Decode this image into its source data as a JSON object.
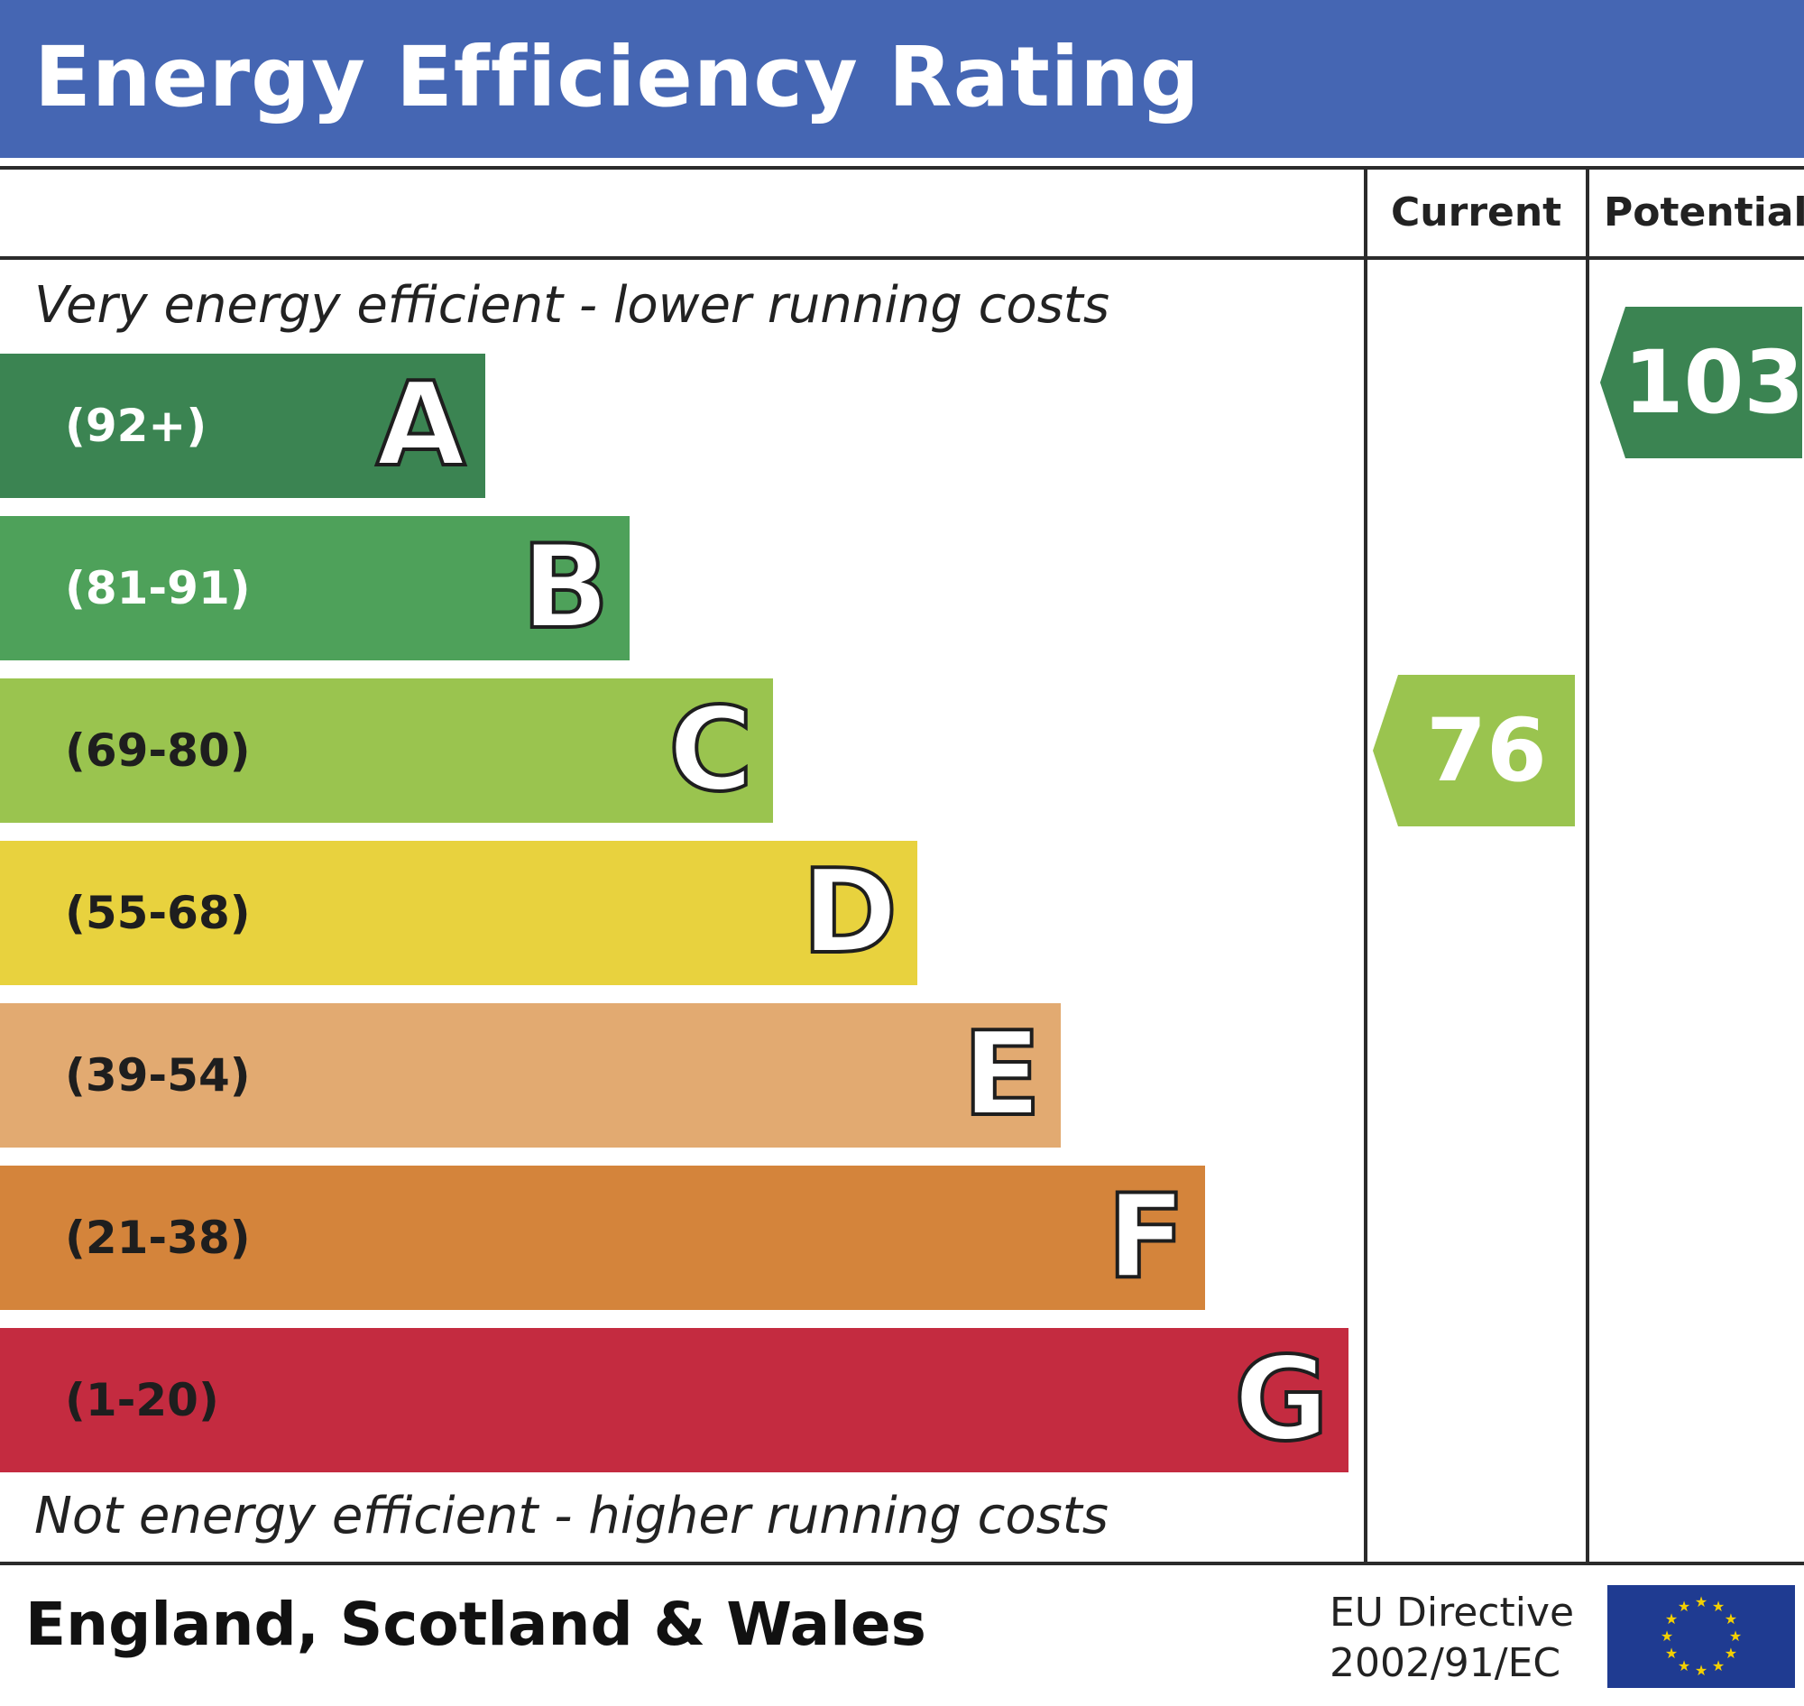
{
  "header": {
    "title": "Energy Efficiency Rating"
  },
  "columns": {
    "current": "Current",
    "potential": "Potential"
  },
  "notes": {
    "top": "Very energy efficient - lower running costs",
    "bottom": "Not energy efficient - higher running costs"
  },
  "footer": {
    "region": "England, Scotland & Wales",
    "directive_line1": "EU Directive",
    "directive_line2": "2002/91/EC",
    "flag_icon": "eu-flag-icon"
  },
  "chart_data": {
    "type": "bar",
    "title": "Energy Efficiency Rating",
    "bands": [
      {
        "letter": "A",
        "range": "(92+)",
        "min": 92,
        "max": null,
        "color": "#3b8452",
        "range_text_color": "#ffffff"
      },
      {
        "letter": "B",
        "range": "(81-91)",
        "min": 81,
        "max": 91,
        "color": "#4ea15a",
        "range_text_color": "#ffffff"
      },
      {
        "letter": "C",
        "range": "(69-80)",
        "min": 69,
        "max": 80,
        "color": "#9ac44f",
        "range_text_color": "#1e1e1e"
      },
      {
        "letter": "D",
        "range": "(55-68)",
        "min": 55,
        "max": 68,
        "color": "#e8d23e",
        "range_text_color": "#1e1e1e"
      },
      {
        "letter": "E",
        "range": "(39-54)",
        "min": 39,
        "max": 54,
        "color": "#e2aa71",
        "range_text_color": "#1e1e1e"
      },
      {
        "letter": "F",
        "range": "(21-38)",
        "min": 21,
        "max": 38,
        "color": "#d4843b",
        "range_text_color": "#1e1e1e"
      },
      {
        "letter": "G",
        "range": "(1-20)",
        "min": 1,
        "max": 20,
        "color": "#c42b40",
        "range_text_color": "#1e1e1e"
      }
    ],
    "current": {
      "value": 76,
      "band": "C",
      "color": "#9ac44f"
    },
    "potential": {
      "value": 103,
      "band": "A",
      "color": "#3b8452"
    }
  }
}
